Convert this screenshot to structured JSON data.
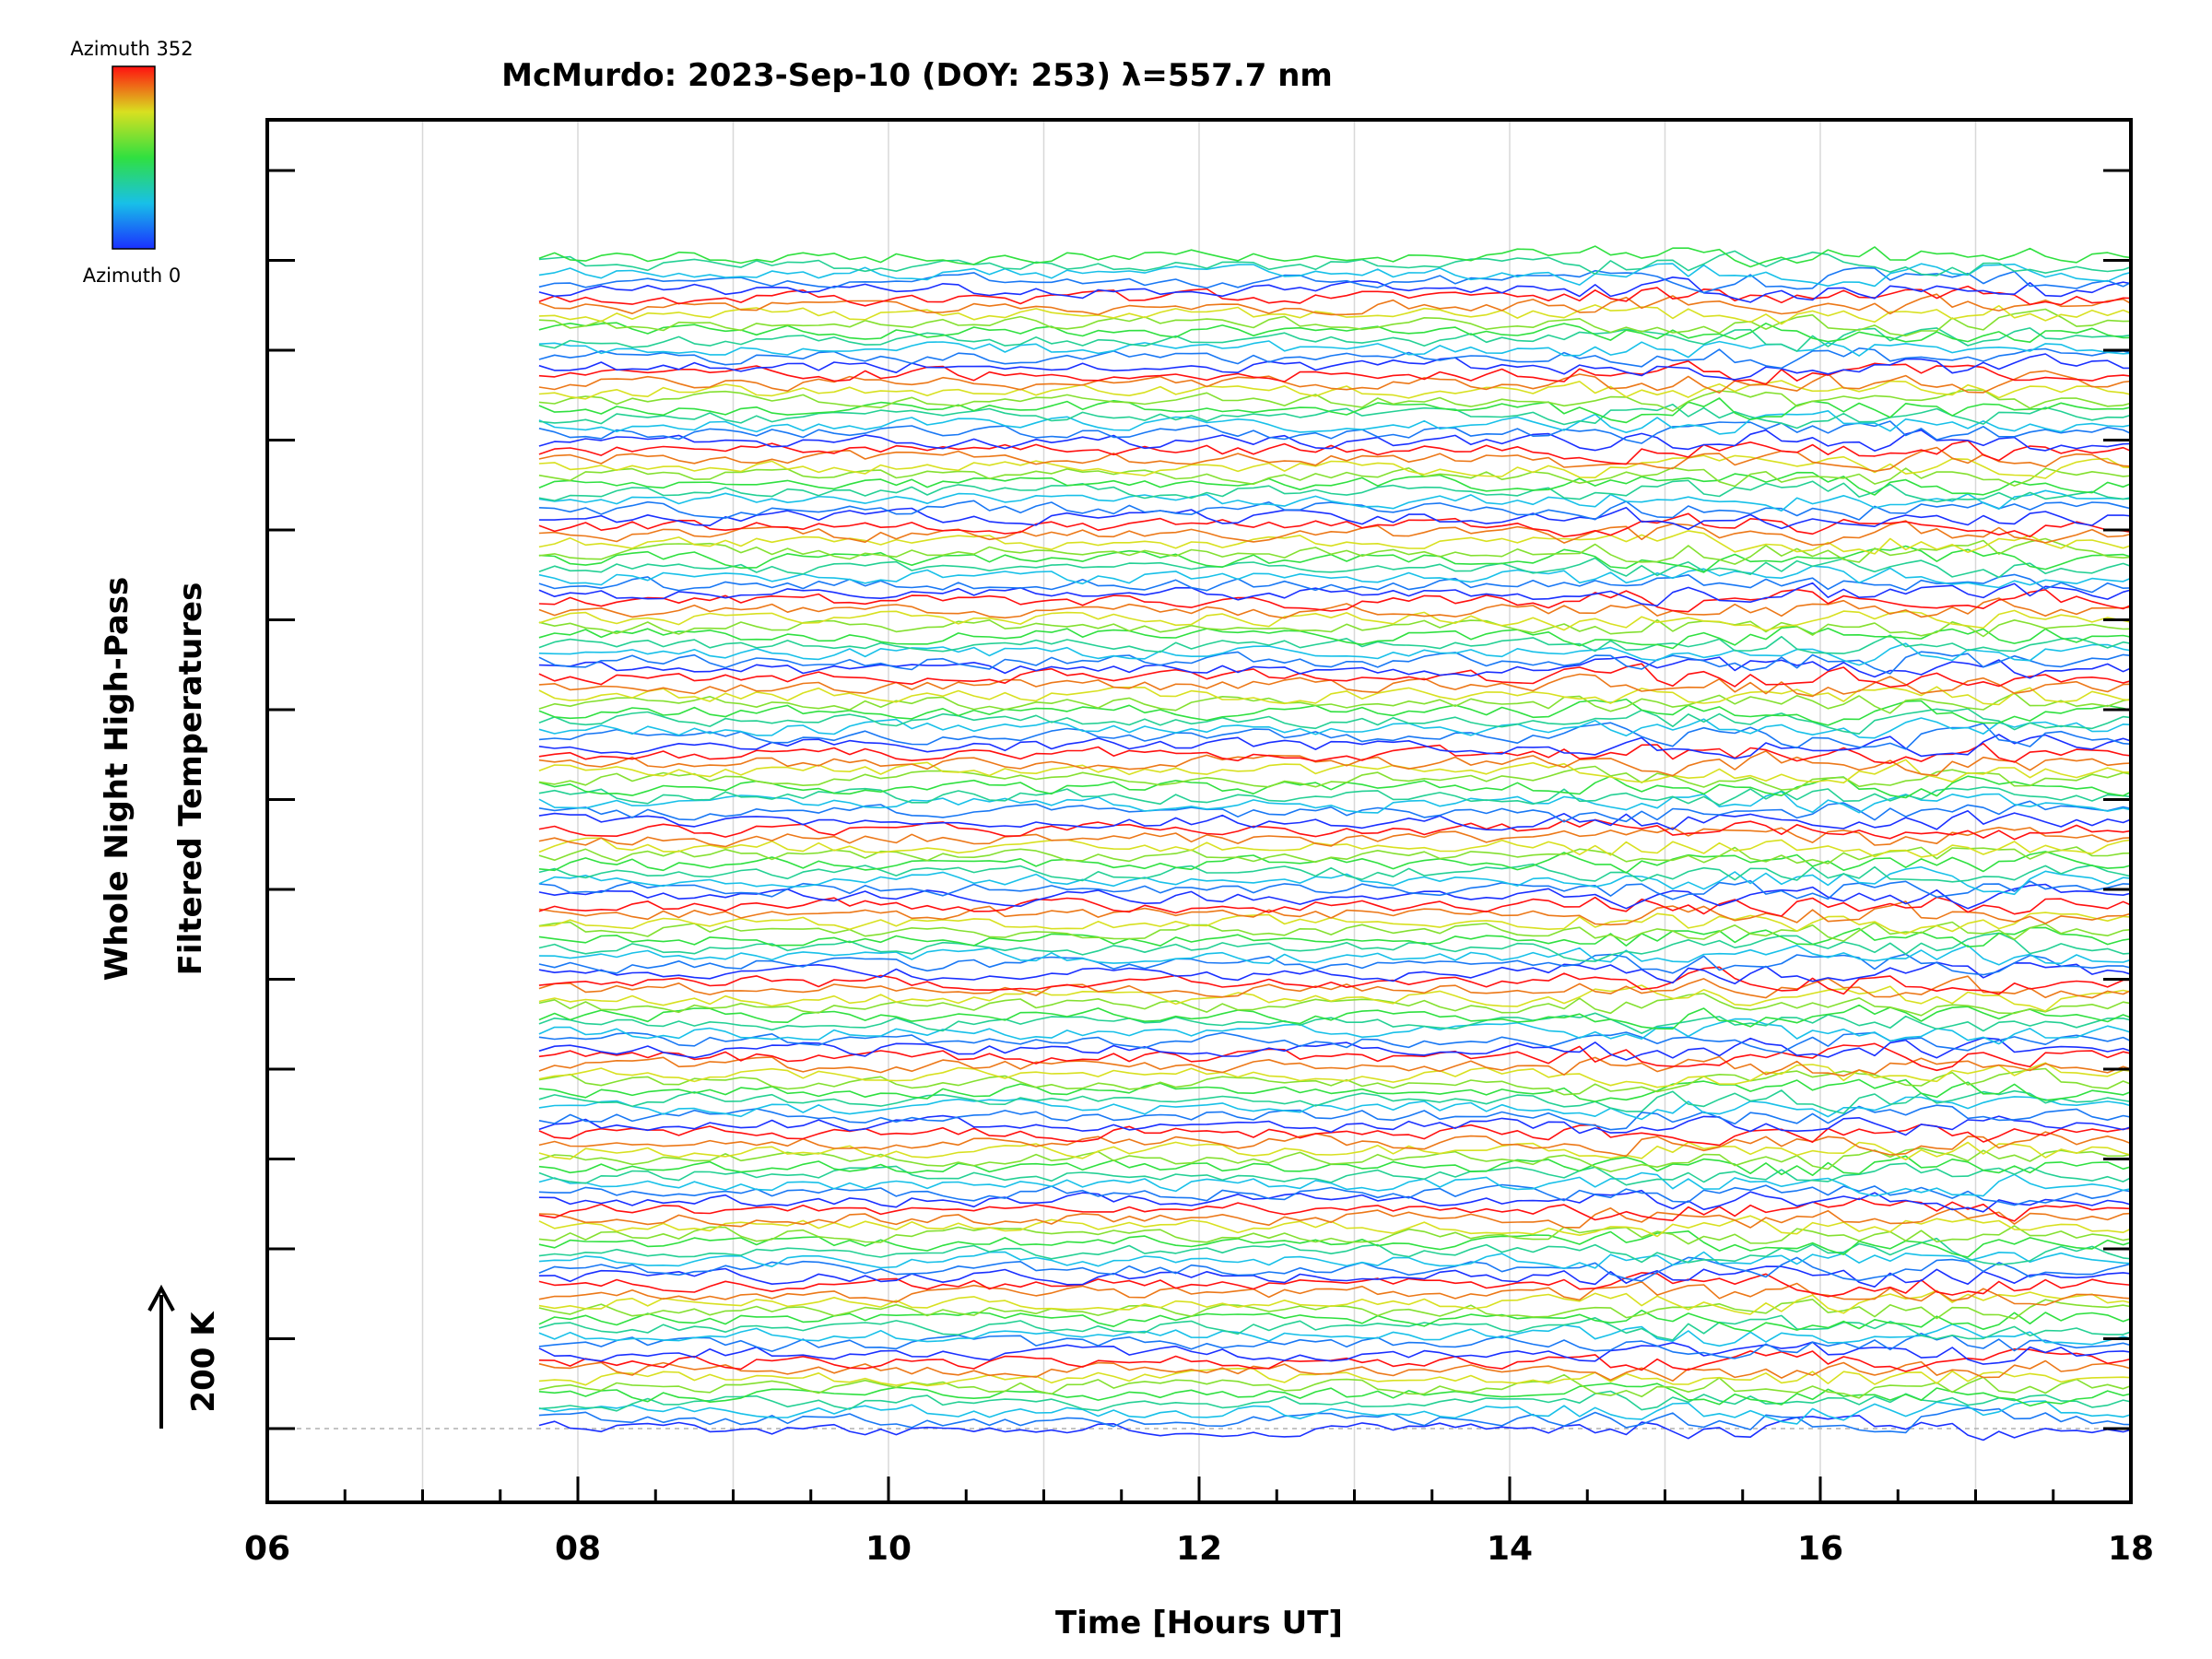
{
  "chart_data": {
    "type": "line",
    "title": "McMurdo: 2023-Sep-10 (DOY: 253) λ=557.7 nm",
    "xlabel": "Time [Hours UT]",
    "ylabel_line1": "Whole Night High-Pass",
    "ylabel_line2": "Filtered Temperatures",
    "scale_label": "200 K",
    "xlim": [
      6,
      18
    ],
    "x_ticks": [
      "06",
      "08",
      "10",
      "12",
      "14",
      "16",
      "18"
    ],
    "x_tick_values": [
      6,
      8,
      10,
      12,
      14,
      16,
      18
    ],
    "x_minor_step": 0.5,
    "y_major_tick_count": 15,
    "data_start_hour": 7.75,
    "data_end_hour": 18.0,
    "sample_interval_hours": 0.1,
    "series_count": 140,
    "series_period_in_azimuth": 9,
    "series_offset_K": 14.3,
    "series_amplitude_K": 10,
    "colorbar": {
      "top_label": "Azimuth 352",
      "bottom_label": "Azimuth 0",
      "azimuth_min": 0,
      "azimuth_max": 352
    },
    "colors": {
      "azimuth_0": "#2020e0",
      "azimuth_88": "#20c0e0",
      "azimuth_176": "#40e040",
      "azimuth_264": "#e0e020",
      "azimuth_352": "#ff1010",
      "grid": "#d8d8d8",
      "axis": "#000000"
    }
  }
}
